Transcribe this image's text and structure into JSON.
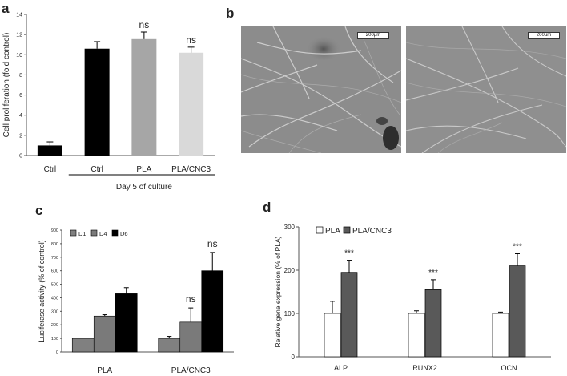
{
  "panels": {
    "a": {
      "letter": "a",
      "chart_data": {
        "type": "bar",
        "categories": [
          "Ctrl",
          "Ctrl",
          "PLA",
          "PLA/CNC3"
        ],
        "values": [
          1.0,
          10.6,
          11.55,
          10.2
        ],
        "errors": [
          0.35,
          0.7,
          0.7,
          0.55
        ],
        "bar_colors": [
          "#000000",
          "#000000",
          "#a6a6a6",
          "#d9d9d9"
        ],
        "annotations": [
          "",
          "",
          "ns",
          "ns"
        ],
        "ylabel": "Cell proliferation (fold control)",
        "xlabel": "Day 5 of culture",
        "ylim": [
          0,
          14
        ],
        "yticks": [
          0,
          2,
          4,
          6,
          8,
          10,
          12,
          14
        ],
        "ytick_labels": [
          "0",
          "2",
          "4",
          "6",
          "8",
          "10",
          "12",
          "14"
        ]
      }
    },
    "b": {
      "letter": "b",
      "scale_labels": [
        "200µm",
        "200µm"
      ],
      "panel_colors": [
        "#8c8c8c",
        "#8f8f8f"
      ]
    },
    "c": {
      "letter": "c",
      "chart_data": {
        "type": "bar",
        "categories": [
          "PLA",
          "PLA/CNC3"
        ],
        "series": [
          {
            "name": "D1",
            "color": "#808080",
            "values": [
              100,
              100
            ],
            "errors": [
              0,
              15
            ]
          },
          {
            "name": "D4",
            "color": "#7a7a7a",
            "values": [
              265,
              220
            ],
            "errors": [
              10,
              105
            ]
          },
          {
            "name": "D6",
            "color": "#000000",
            "values": [
              430,
              600
            ],
            "errors": [
              45,
              135
            ]
          }
        ],
        "annotations": [
          {
            "category": "PLA/CNC3",
            "series": "D4",
            "text": "ns"
          },
          {
            "category": "PLA/CNC3",
            "series": "D6",
            "text": "ns"
          }
        ],
        "ylabel": "Luciferase activity (% of control)",
        "ylim": [
          0,
          900
        ],
        "yticks": [
          0,
          100,
          200,
          300,
          400,
          500,
          600,
          700,
          800,
          900
        ],
        "ytick_labels": [
          "0",
          "100",
          "200",
          "300",
          "400",
          "500",
          "600",
          "700",
          "800",
          "900"
        ],
        "legend_position": "top-left"
      }
    },
    "d": {
      "letter": "d",
      "chart_data": {
        "type": "bar",
        "categories": [
          "ALP",
          "RUNX2",
          "OCN"
        ],
        "series": [
          {
            "name": "PLA",
            "color": "#ffffff",
            "values": [
              100,
              100,
              100
            ],
            "errors": [
              28,
              6,
              3
            ]
          },
          {
            "name": "PLA/CNC3",
            "color": "#595959",
            "values": [
              195,
              155,
              210
            ],
            "errors": [
              28,
              23,
              28
            ]
          }
        ],
        "annotations": [
          "***",
          "***",
          "***"
        ],
        "ylabel": "Relative gene expression (% of PLA)",
        "ylim": [
          0,
          300
        ],
        "yticks": [
          0,
          100,
          200,
          300
        ],
        "ytick_labels": [
          "0",
          "100",
          "200",
          "300"
        ],
        "legend_position": "top-left"
      }
    }
  }
}
